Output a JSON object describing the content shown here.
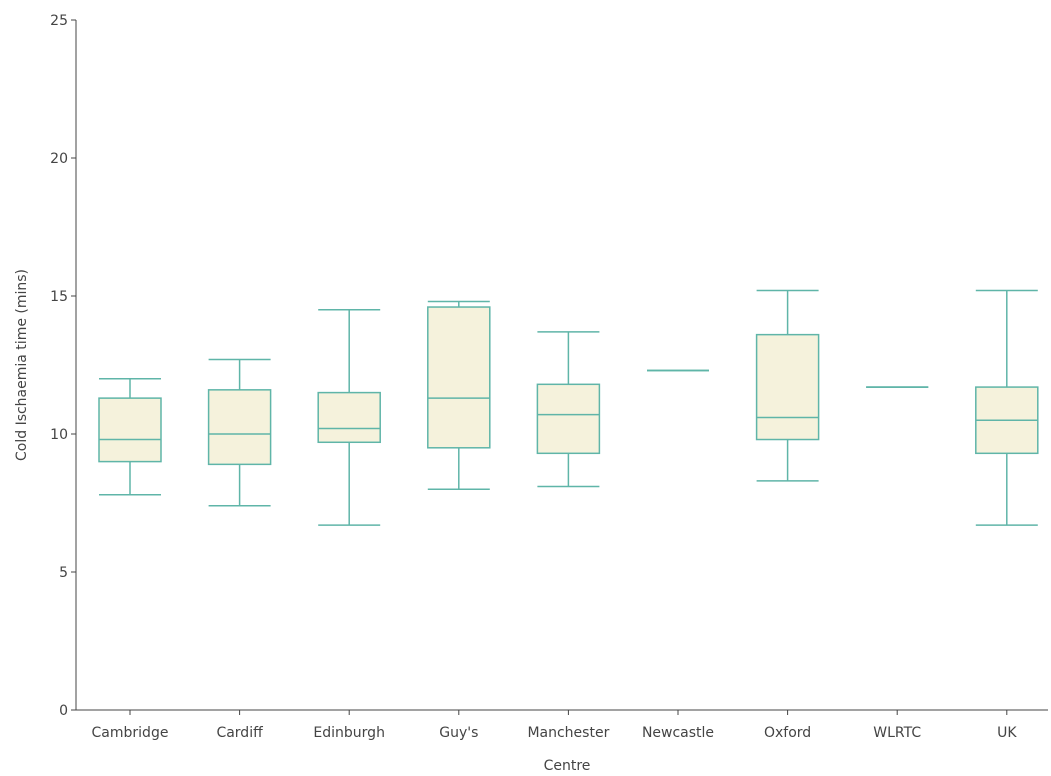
{
  "chart_data": {
    "type": "box",
    "xlabel": "Centre",
    "ylabel": "Cold Ischaemia time (mins)",
    "ylim": [
      0,
      25
    ],
    "yticks": [
      0,
      5,
      10,
      15,
      20,
      25
    ],
    "grid": false,
    "legend": "none",
    "colors": {
      "box_fill": "#f5f2dc",
      "box_stroke": "#5fb5a8",
      "axis": "#444444"
    },
    "categories": [
      "Cambridge",
      "Cardiff",
      "Edinburgh",
      "Guy's",
      "Manchester",
      "Newcastle",
      "Oxford",
      "WLRTC",
      "UK"
    ],
    "boxes": [
      {
        "min": 7.8,
        "q1": 9.0,
        "median": 9.8,
        "q3": 11.3,
        "max": 12.0
      },
      {
        "min": 7.4,
        "q1": 8.9,
        "median": 10.0,
        "q3": 11.6,
        "max": 12.7
      },
      {
        "min": 6.7,
        "q1": 9.7,
        "median": 10.2,
        "q3": 11.5,
        "max": 14.5
      },
      {
        "min": 8.0,
        "q1": 9.5,
        "median": 11.3,
        "q3": 14.6,
        "max": 14.8
      },
      {
        "min": 8.1,
        "q1": 9.3,
        "median": 10.7,
        "q3": 11.8,
        "max": 13.7
      },
      {
        "min": 12.3,
        "q1": 12.3,
        "median": 12.3,
        "q3": 12.3,
        "max": 12.3
      },
      {
        "min": 8.3,
        "q1": 9.8,
        "median": 10.6,
        "q3": 13.6,
        "max": 15.2
      },
      {
        "min": 11.7,
        "q1": 11.7,
        "median": 11.7,
        "q3": 11.7,
        "max": 11.7
      },
      {
        "min": 6.7,
        "q1": 9.3,
        "median": 10.5,
        "q3": 11.7,
        "max": 15.2
      }
    ]
  }
}
